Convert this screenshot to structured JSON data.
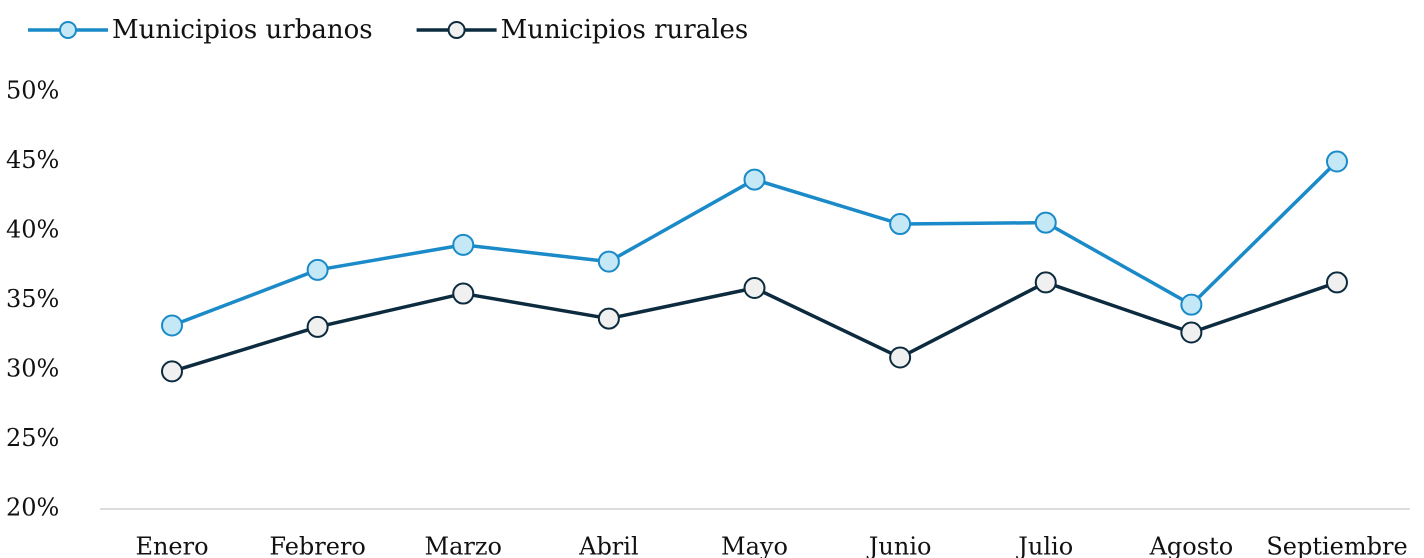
{
  "chart_data": {
    "type": "line",
    "categories": [
      "Enero",
      "Febrero",
      "Marzo",
      "Abril",
      "Mayo",
      "Junio",
      "Julio",
      "Agosto",
      "Septiembre"
    ],
    "series": [
      {
        "name": "Municipios urbanos",
        "color": "#1a8ac9",
        "marker_color": "#c5e8f7",
        "values": [
          33.2,
          37.2,
          39.0,
          37.8,
          43.7,
          40.5,
          40.6,
          34.7,
          45.0
        ]
      },
      {
        "name": "Municipios rurales",
        "color": "#0d2b3e",
        "marker_color": "#f0f0f0",
        "values": [
          29.9,
          33.1,
          35.5,
          33.7,
          35.9,
          30.9,
          36.3,
          32.7,
          36.3
        ]
      }
    ],
    "ylim": [
      20,
      50
    ],
    "yticks": [
      {
        "value": 20,
        "label": "20%"
      },
      {
        "value": 25,
        "label": "25%"
      },
      {
        "value": 30,
        "label": "30%"
      },
      {
        "value": 35,
        "label": "35%"
      },
      {
        "value": 40,
        "label": "40%"
      },
      {
        "value": 45,
        "label": "45%"
      },
      {
        "value": 50,
        "label": "50%"
      }
    ],
    "grid": false,
    "legend": "top"
  }
}
